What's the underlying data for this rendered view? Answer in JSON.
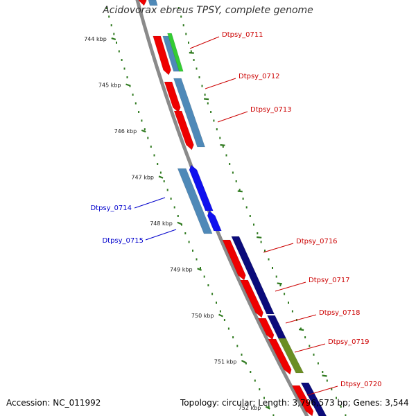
{
  "title": "Acidovorax ebreus TPSY, complete genome",
  "footer": {
    "accession": "Accession: NC_011992",
    "summary": "Topology: circular; Length: 3,796,573 bp; Genes: 3,544"
  },
  "colors": {
    "backbone": "#8a8a8a",
    "tick": "#2f7a1f",
    "forward_label": "#cc0000",
    "reverse_label": "#0000cc",
    "cds_red": "#ee0000",
    "cds_steel": "#4f89b8",
    "cds_green": "#33cc33",
    "cds_navy": "#0b0b7a",
    "cds_blue": "#1010ee",
    "cds_olive": "#6b8e23"
  },
  "ticks": [
    "744 kbp",
    "745 kbp",
    "746 kbp",
    "747 kbp",
    "748 kbp",
    "749 kbp",
    "750 kbp",
    "751 kbp",
    "752 kbp"
  ],
  "genes": [
    {
      "name": "Dtpsy_0711",
      "strand": "forward"
    },
    {
      "name": "Dtpsy_0712",
      "strand": "forward"
    },
    {
      "name": "Dtpsy_0713",
      "strand": "forward"
    },
    {
      "name": "Dtpsy_0714",
      "strand": "reverse"
    },
    {
      "name": "Dtpsy_0715",
      "strand": "reverse"
    },
    {
      "name": "Dtpsy_0716",
      "strand": "forward"
    },
    {
      "name": "Dtpsy_0717",
      "strand": "forward"
    },
    {
      "name": "Dtpsy_0718",
      "strand": "forward"
    },
    {
      "name": "Dtpsy_0719",
      "strand": "forward"
    },
    {
      "name": "Dtpsy_0720",
      "strand": "forward"
    }
  ]
}
